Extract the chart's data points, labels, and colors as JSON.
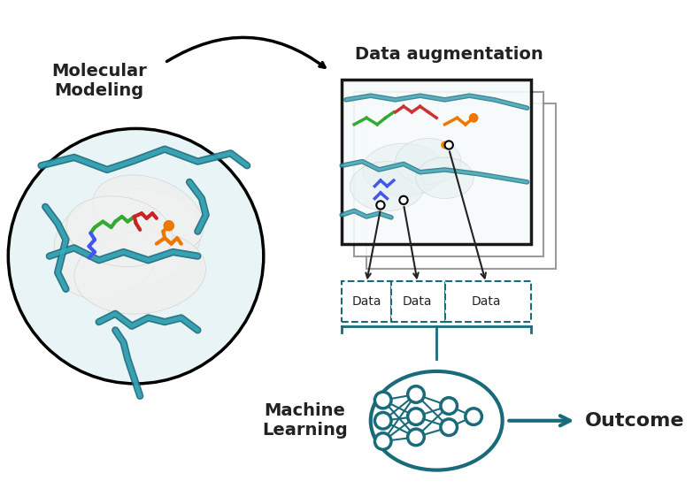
{
  "teal_color": "#1a6b7a",
  "black_color": "#222222",
  "bg_color": "#ffffff",
  "title_mol": "Molecular\nModeling",
  "title_data": "Data augmentation",
  "title_ml": "Machine\nLearning",
  "title_outcome": "Outcome",
  "font_size_main": 13,
  "font_size_outcome": 15,
  "panel_gray2": "#cccccc"
}
